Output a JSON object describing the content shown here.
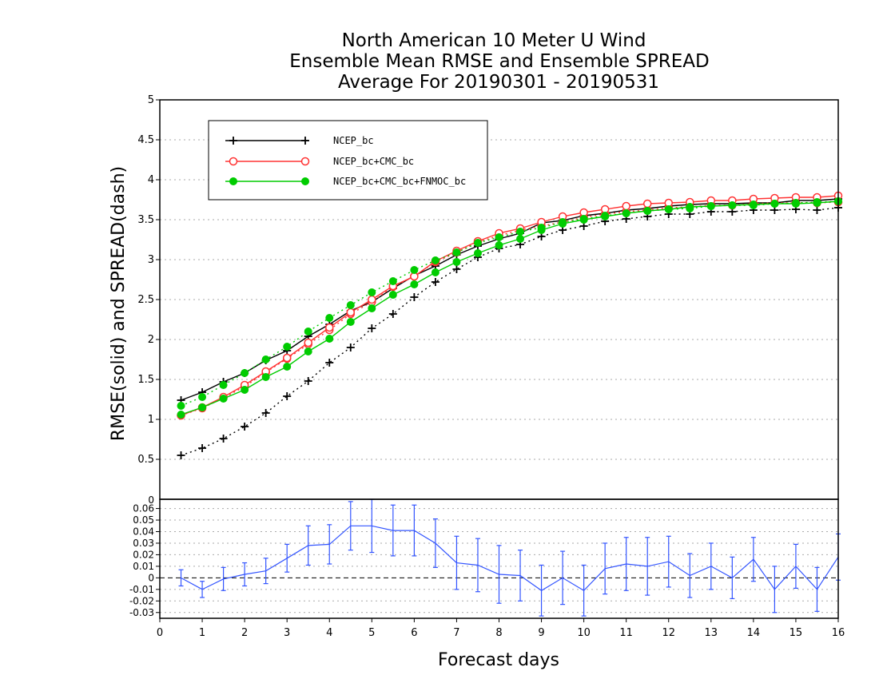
{
  "chart_data": {
    "type": "line",
    "title_lines": [
      "North American 10 Meter U Wind",
      "Ensemble Mean RMSE and Ensemble SPREAD",
      "Average For 20190301 - 20190531"
    ],
    "ylabel": "RMSE(solid)  and  SPREAD(dash)",
    "xlabel": "Forecast days",
    "x_ticks": [
      "0",
      "1",
      "2",
      "3",
      "4",
      "5",
      "6",
      "7",
      "8",
      "9",
      "10",
      "11",
      "12",
      "13",
      "14",
      "15",
      "16"
    ],
    "main_y_ticks": [
      "0.5",
      "1",
      "1.5",
      "2",
      "2.5",
      "3",
      "3.5",
      "4",
      "4.5",
      "5"
    ],
    "diff_y_ticks": [
      "0.06",
      "0.05",
      "0.04",
      "0.03",
      "0.02",
      "0.01",
      "0",
      "-0.01",
      "-0.02",
      "-0.03"
    ],
    "diff_top_label": "0",
    "xlim": [
      0,
      16
    ],
    "ylim_main": [
      0,
      5
    ],
    "ylim_diff": [
      -0.035,
      0.068
    ],
    "grid": true,
    "legend": {
      "position": "top-left",
      "entries": [
        "NCEP_bc",
        "NCEP_bc+CMC_bc",
        "NCEP_bc+CMC_bc+FNMOC_bc"
      ]
    },
    "x": [
      0.5,
      1,
      1.5,
      2,
      2.5,
      3,
      3.5,
      4,
      4.5,
      5,
      5.5,
      6,
      6.5,
      7,
      7.5,
      8,
      8.5,
      9,
      9.5,
      10,
      10.5,
      11,
      11.5,
      12,
      12.5,
      13,
      13.5,
      14,
      14.5,
      15,
      15.5,
      16
    ],
    "series": [
      {
        "name": "NCEP_bc",
        "color": "#000000",
        "marker": "plus",
        "rmse": [
          1.24,
          1.34,
          1.47,
          1.58,
          1.74,
          1.86,
          2.04,
          2.19,
          2.36,
          2.47,
          2.64,
          2.8,
          2.92,
          3.06,
          3.17,
          3.26,
          3.33,
          3.46,
          3.49,
          3.55,
          3.58,
          3.62,
          3.64,
          3.67,
          3.69,
          3.7,
          3.7,
          3.71,
          3.71,
          3.74,
          3.74,
          3.76
        ],
        "spread": [
          0.55,
          0.64,
          0.76,
          0.91,
          1.08,
          1.29,
          1.48,
          1.71,
          1.9,
          2.14,
          2.32,
          2.53,
          2.72,
          2.88,
          3.03,
          3.14,
          3.19,
          3.29,
          3.37,
          3.42,
          3.48,
          3.51,
          3.54,
          3.57,
          3.57,
          3.6,
          3.6,
          3.62,
          3.62,
          3.63,
          3.62,
          3.65
        ]
      },
      {
        "name": "NCEP_bc+CMC_bc",
        "color": "#ff3333",
        "marker": "open-circle",
        "rmse": [
          1.05,
          1.15,
          1.28,
          1.43,
          1.6,
          1.77,
          1.96,
          2.15,
          2.34,
          2.5,
          2.67,
          2.79,
          2.98,
          3.11,
          3.23,
          3.33,
          3.39,
          3.47,
          3.54,
          3.59,
          3.63,
          3.67,
          3.7,
          3.71,
          3.72,
          3.74,
          3.74,
          3.76,
          3.77,
          3.78,
          3.78,
          3.8
        ],
        "spread": [
          1.05,
          1.14,
          1.27,
          1.41,
          1.59,
          1.76,
          1.94,
          2.12,
          2.32,
          2.47,
          2.66,
          2.79,
          2.97,
          3.09,
          3.22,
          3.3,
          3.37,
          3.42,
          3.47,
          3.53,
          3.57,
          3.6,
          3.62,
          3.65,
          3.66,
          3.68,
          3.68,
          3.7,
          3.71,
          3.71,
          3.71,
          3.72
        ]
      },
      {
        "name": "NCEP_bc+CMC_bc+FNMOC_bc",
        "color": "#00cc00",
        "marker": "filled-circle",
        "rmse": [
          1.06,
          1.15,
          1.26,
          1.37,
          1.53,
          1.66,
          1.85,
          2.01,
          2.22,
          2.39,
          2.56,
          2.69,
          2.84,
          2.97,
          3.08,
          3.18,
          3.26,
          3.37,
          3.45,
          3.5,
          3.54,
          3.58,
          3.61,
          3.63,
          3.66,
          3.67,
          3.68,
          3.69,
          3.7,
          3.7,
          3.71,
          3.73
        ],
        "spread": [
          1.17,
          1.28,
          1.43,
          1.58,
          1.75,
          1.91,
          2.1,
          2.27,
          2.43,
          2.59,
          2.73,
          2.87,
          2.99,
          3.09,
          3.21,
          3.28,
          3.35,
          3.4,
          3.47,
          3.51,
          3.55,
          3.58,
          3.61,
          3.63,
          3.64,
          3.67,
          3.68,
          3.68,
          3.7,
          3.71,
          3.72,
          3.73
        ]
      }
    ],
    "difference": {
      "color": "#3355ff",
      "x": [
        0.5,
        1,
        1.5,
        2,
        2.5,
        3,
        3.5,
        4,
        4.5,
        5,
        5.5,
        6,
        6.5,
        7,
        7.5,
        8,
        8.5,
        9,
        9.5,
        10,
        10.5,
        11,
        11.5,
        12,
        12.5,
        13,
        13.5,
        14,
        14.5,
        15,
        15.5,
        16
      ],
      "values": [
        0,
        -0.01,
        -0.001,
        0.003,
        0.006,
        0.017,
        0.028,
        0.029,
        0.045,
        0.045,
        0.041,
        0.041,
        0.03,
        0.013,
        0.011,
        0.003,
        0.002,
        -0.011,
        0,
        -0.011,
        0.008,
        0.012,
        0.01,
        0.014,
        0.002,
        0.01,
        0,
        0.016,
        -0.01,
        0.01,
        -0.01,
        0.018
      ],
      "err": [
        0.007,
        0.007,
        0.01,
        0.01,
        0.011,
        0.012,
        0.017,
        0.017,
        0.021,
        0.023,
        0.022,
        0.022,
        0.021,
        0.023,
        0.023,
        0.025,
        0.022,
        0.022,
        0.023,
        0.022,
        0.022,
        0.023,
        0.025,
        0.022,
        0.019,
        0.02,
        0.018,
        0.019,
        0.02,
        0.019,
        0.019,
        0.02
      ]
    }
  }
}
